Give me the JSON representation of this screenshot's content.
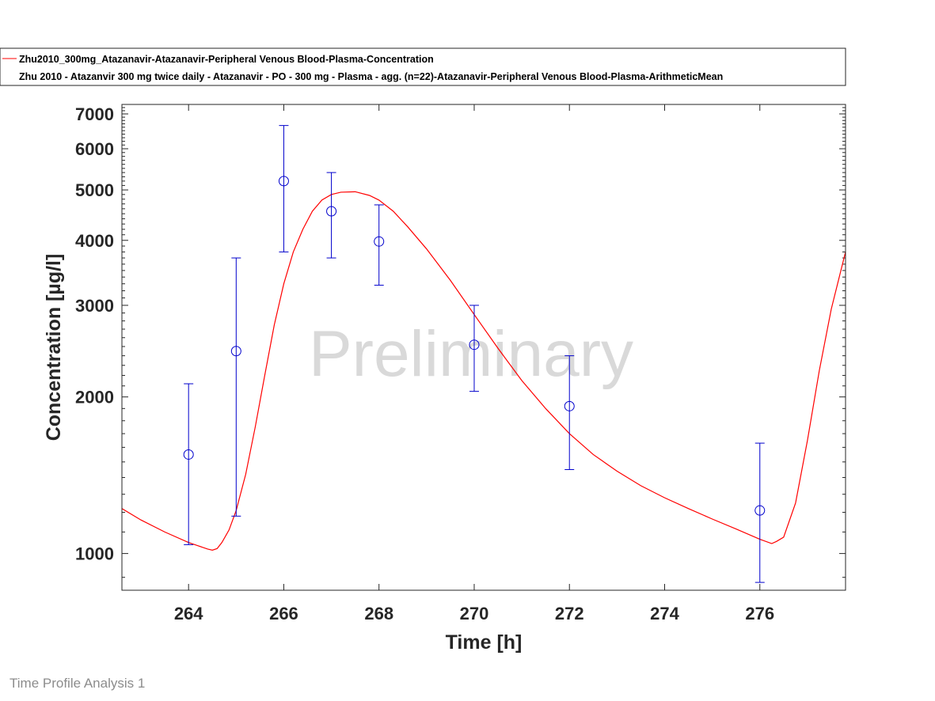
{
  "chart_data": {
    "type": "line",
    "xlabel": "Time [h]",
    "ylabel": "Concentration [µg/l]",
    "xlim": [
      262.6,
      277.8
    ],
    "ylim": [
      850,
      7300
    ],
    "yscale": "log",
    "x_ticks": [
      264,
      266,
      268,
      270,
      272,
      274,
      276
    ],
    "y_ticks": [
      1000,
      2000,
      3000,
      4000,
      5000,
      6000,
      7000
    ],
    "grid": false,
    "legend_position": "top",
    "watermark": "Preliminary",
    "series": [
      {
        "name": "Zhu2010_300mg_Atazanavir-Atazanavir-Peripheral Venous Blood-Plasma-Concentration",
        "kind": "line",
        "color": "#ff0000",
        "x": [
          262.6,
          263.0,
          263.5,
          264.0,
          264.2,
          264.4,
          264.5,
          264.6,
          264.7,
          264.85,
          265.0,
          265.2,
          265.4,
          265.6,
          265.8,
          266.0,
          266.2,
          266.4,
          266.6,
          266.8,
          267.0,
          267.2,
          267.5,
          267.8,
          268.0,
          268.3,
          268.6,
          269.0,
          269.5,
          270.0,
          270.5,
          271.0,
          271.5,
          272.0,
          272.5,
          273.0,
          273.5,
          274.0,
          274.5,
          275.0,
          275.5,
          276.0,
          276.25,
          276.35,
          276.5,
          276.75,
          277.0,
          277.25,
          277.5,
          277.8
        ],
        "y": [
          1220,
          1160,
          1100,
          1050,
          1035,
          1020,
          1015,
          1022,
          1050,
          1110,
          1210,
          1420,
          1750,
          2200,
          2750,
          3300,
          3800,
          4200,
          4550,
          4780,
          4900,
          4950,
          4960,
          4880,
          4780,
          4550,
          4250,
          3850,
          3350,
          2880,
          2480,
          2150,
          1900,
          1700,
          1550,
          1440,
          1350,
          1280,
          1220,
          1165,
          1115,
          1065,
          1045,
          1055,
          1075,
          1250,
          1650,
          2250,
          2950,
          3800
        ]
      },
      {
        "name": "Zhu 2010 - Atazanvir 300 mg twice daily - Atazanavir - PO - 300 mg - Plasma - agg. (n=22)-Atazanavir-Peripheral Venous Blood-Plasma-ArithmeticMean",
        "kind": "scatter_errorbar",
        "color": "#0000cc",
        "x": [
          264,
          265,
          266,
          267,
          268,
          270,
          272,
          276
        ],
        "y": [
          1550,
          2450,
          5200,
          4550,
          3980,
          2520,
          1920,
          1210
        ],
        "y_lower": [
          1040,
          1180,
          3800,
          3700,
          3280,
          2050,
          1450,
          880
        ],
        "y_upper": [
          2120,
          3700,
          6650,
          5400,
          4680,
          3000,
          2400,
          1630
        ]
      }
    ]
  },
  "footer": {
    "label": "Time Profile Analysis 1"
  }
}
